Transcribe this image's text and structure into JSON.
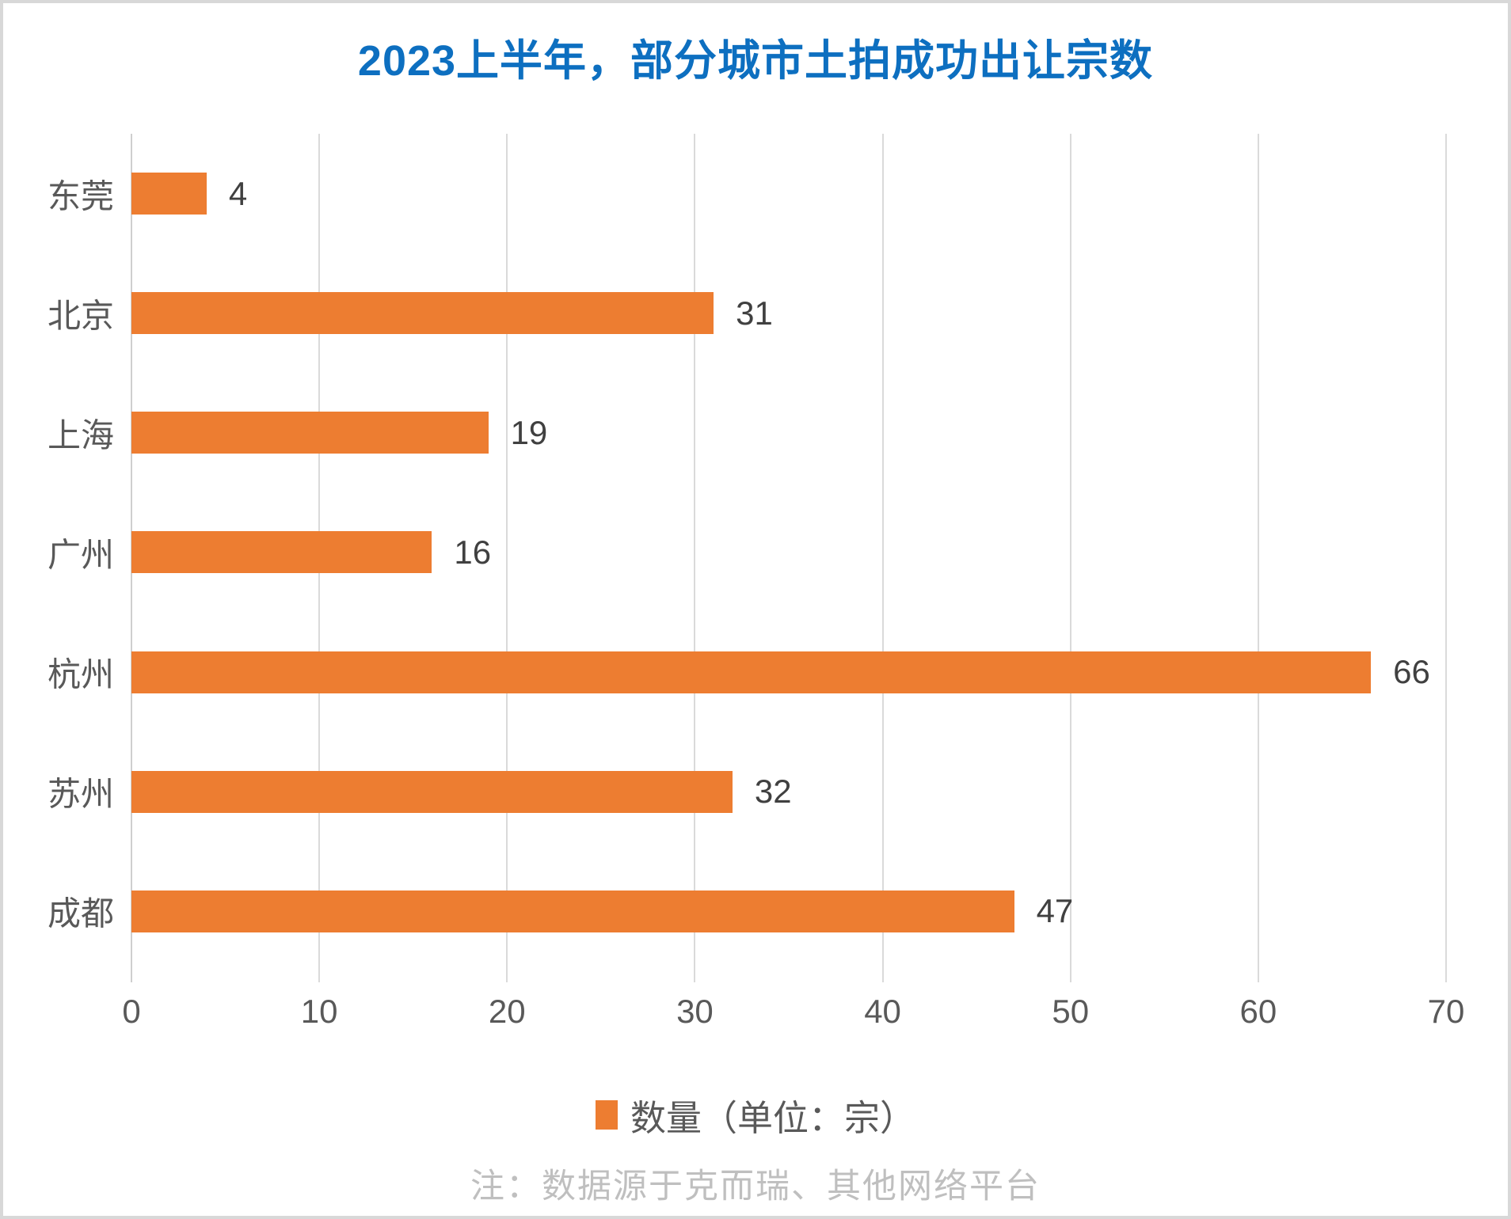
{
  "title": {
    "text": "2023上半年，部分城市土拍成功出让宗数",
    "color": "#0d6fc0"
  },
  "chart_data": {
    "type": "bar",
    "orientation": "horizontal",
    "title": "2023上半年，部分城市土拍成功出让宗数",
    "categories": [
      "东莞",
      "北京",
      "上海",
      "广州",
      "杭州",
      "苏州",
      "成都"
    ],
    "values": [
      4,
      31,
      19,
      16,
      66,
      32,
      47
    ],
    "series_name": "数量（单位：宗）",
    "xlabel": "",
    "ylabel": "",
    "xlim": [
      0,
      70
    ],
    "x_ticks": [
      0,
      10,
      20,
      30,
      40,
      50,
      60,
      70
    ],
    "bar_color": "#ed7d31",
    "grid": true,
    "gridline_color": "#dadada",
    "legend_position": "bottom"
  },
  "legend": {
    "label": "数量（单位：宗）",
    "marker_color": "#ed7d31"
  },
  "footnote": {
    "text": "注：数据源于克而瑞、其他网络平台"
  }
}
